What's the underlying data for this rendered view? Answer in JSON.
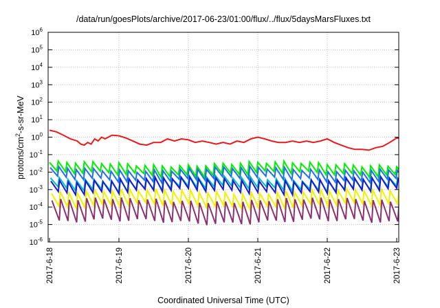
{
  "chart_data": {
    "type": "line",
    "title": "/data/run/goesPlots/archive/2017-06-23/01:00/flux/../flux/5daysMarsFluxes.txt",
    "xlabel": "Coordinated Universal Time (UTC)",
    "ylabel": {
      "base": "protons/cm",
      "sup": "2",
      "rest": "-s-sr-MeV"
    },
    "y_scale": "log",
    "ylim_exponents": [
      -6,
      6
    ],
    "y_ticks": [
      {
        "base": "10",
        "exp": "-6"
      },
      {
        "base": "10",
        "exp": "-5"
      },
      {
        "base": "10",
        "exp": "-4"
      },
      {
        "base": "10",
        "exp": "-3"
      },
      {
        "base": "10",
        "exp": "-2"
      },
      {
        "base": "10",
        "exp": "-1"
      },
      {
        "base": "10",
        "exp": "0"
      },
      {
        "base": "10",
        "exp": "1"
      },
      {
        "base": "10",
        "exp": "2"
      },
      {
        "base": "10",
        "exp": "3"
      },
      {
        "base": "10",
        "exp": "4"
      },
      {
        "base": "10",
        "exp": "5"
      },
      {
        "base": "10",
        "exp": "6"
      }
    ],
    "x_range_days": [
      "2017-6-18",
      "2017-6-23 01:00"
    ],
    "x_ticks": [
      "2017-6-18",
      "2017-6-19",
      "2017-6-20",
      "2017-6-21",
      "2017-6-22",
      "2017-6-23"
    ],
    "grid": true,
    "series": [
      {
        "color": "#e8191a",
        "points": [
          [
            0.0,
            2.5
          ],
          [
            0.1,
            2.0
          ],
          [
            0.2,
            1.3
          ],
          [
            0.3,
            0.8
          ],
          [
            0.4,
            0.6
          ],
          [
            0.45,
            0.4
          ],
          [
            0.5,
            0.35
          ],
          [
            0.55,
            0.5
          ],
          [
            0.6,
            0.4
          ],
          [
            0.65,
            0.8
          ],
          [
            0.7,
            0.6
          ],
          [
            0.75,
            1.0
          ],
          [
            0.8,
            0.8
          ],
          [
            0.9,
            1.3
          ],
          [
            1.0,
            1.2
          ],
          [
            1.1,
            0.9
          ],
          [
            1.2,
            0.6
          ],
          [
            1.3,
            0.4
          ],
          [
            1.4,
            0.35
          ],
          [
            1.5,
            0.5
          ],
          [
            1.6,
            0.5
          ],
          [
            1.7,
            0.8
          ],
          [
            1.8,
            0.6
          ],
          [
            1.9,
            0.8
          ],
          [
            2.0,
            0.7
          ],
          [
            2.1,
            0.5
          ],
          [
            2.2,
            0.6
          ],
          [
            2.3,
            0.5
          ],
          [
            2.4,
            0.4
          ],
          [
            2.5,
            0.5
          ],
          [
            2.6,
            0.4
          ],
          [
            2.7,
            0.6
          ],
          [
            2.8,
            0.5
          ],
          [
            2.9,
            0.8
          ],
          [
            3.0,
            1.0
          ],
          [
            3.1,
            0.8
          ],
          [
            3.2,
            0.6
          ],
          [
            3.3,
            0.5
          ],
          [
            3.4,
            0.5
          ],
          [
            3.5,
            0.6
          ],
          [
            3.6,
            0.5
          ],
          [
            3.7,
            0.6
          ],
          [
            3.8,
            0.5
          ],
          [
            3.9,
            0.6
          ],
          [
            4.0,
            0.8
          ],
          [
            4.1,
            0.5
          ],
          [
            4.2,
            0.35
          ],
          [
            4.3,
            0.25
          ],
          [
            4.4,
            0.2
          ],
          [
            4.5,
            0.2
          ],
          [
            4.6,
            0.18
          ],
          [
            4.7,
            0.25
          ],
          [
            4.8,
            0.3
          ],
          [
            4.9,
            0.5
          ],
          [
            5.0,
            0.9
          ],
          [
            5.04,
            0.85
          ]
        ]
      },
      {
        "color": "#00ee00",
        "baseline": 0.03,
        "mod": 0.015,
        "low": 0.008,
        "phase": 0.0
      },
      {
        "color": "#1f6eea",
        "baseline": 0.015,
        "mod": 0.008,
        "low": 0.004,
        "phase": 0.01
      },
      {
        "color": "#00bcbc",
        "baseline": 0.0045,
        "mod": 0.002,
        "low": 0.0012,
        "phase": 0.015
      },
      {
        "color": "#1a1acc",
        "baseline": 0.0038,
        "mod": 0.0018,
        "low": 0.0008,
        "phase": 0.02
      },
      {
        "color": "#f0f000",
        "baseline": 0.0008,
        "mod": 0.0004,
        "low": 0.00012,
        "phase": 0.03
      },
      {
        "color": "#8b3070",
        "baseline": 0.00025,
        "mod": 0.0002,
        "low": 1.5e-05,
        "phase": 0.035
      }
    ]
  }
}
